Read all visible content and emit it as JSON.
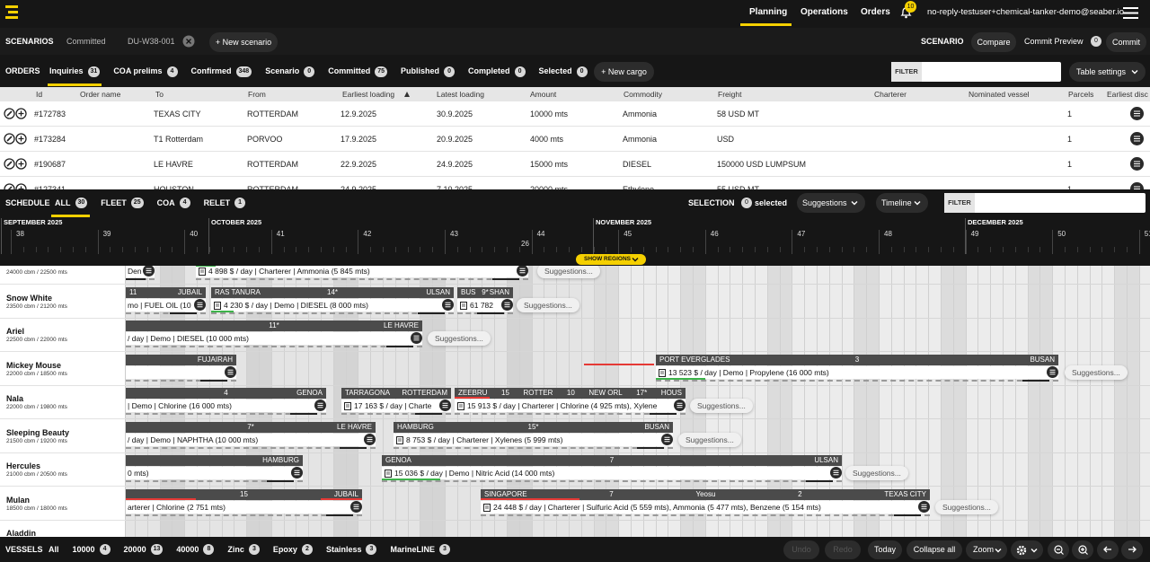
{
  "nav": {
    "links": [
      "Planning",
      "Operations",
      "Orders"
    ],
    "notifications": 10,
    "user": "no-reply-testuser+chemical-tanker-demo@seaber.io"
  },
  "scenarios": {
    "label": "SCENARIOS",
    "tabs": [
      "Committed",
      "DU-W38-001"
    ],
    "new": "+ New scenario",
    "right_label": "SCENARIO",
    "compare": "Compare",
    "preview": "Commit Preview",
    "preview_count": 0,
    "commit": "Commit"
  },
  "orders": {
    "label": "ORDERS",
    "tabs": [
      {
        "name": "Inquiries",
        "count": 31
      },
      {
        "name": "COA prelims",
        "count": 4
      },
      {
        "name": "Confirmed",
        "count": 348
      },
      {
        "name": "Scenario",
        "count": 0
      },
      {
        "name": "Committed",
        "count": 75
      },
      {
        "name": "Published",
        "count": 0
      },
      {
        "name": "Completed",
        "count": 0
      },
      {
        "name": "Selected",
        "count": 0
      },
      {
        "name": "All",
        "count": 458
      }
    ],
    "new": "+ New cargo",
    "filter": "FILTER",
    "settings": "Table settings"
  },
  "table": {
    "columns": [
      "Id",
      "Order name",
      "To",
      "From",
      "Earliest loading",
      "Latest loading",
      "Amount",
      "Commodity",
      "Freight",
      "Charterer",
      "Nominated vessel",
      "Parcels",
      "Earliest disc"
    ],
    "rows": [
      {
        "id": "#172783",
        "to": "TEXAS CITY",
        "from": "ROTTERDAM",
        "earliest": "12.9.2025",
        "latest": "30.9.2025",
        "amount": "10000 mts",
        "commodity": "Ammonia",
        "freight": "58 USD MT",
        "parcels": 1
      },
      {
        "id": "#173284",
        "to": "T1 Rotterdam",
        "from": "PORVOO",
        "earliest": "17.9.2025",
        "latest": "20.9.2025",
        "amount": "4000 mts",
        "commodity": "Ammonia",
        "freight": "USD",
        "parcels": 1
      },
      {
        "id": "#190687",
        "to": "LE HAVRE",
        "from": "ROTTERDAM",
        "earliest": "22.9.2025",
        "latest": "24.9.2025",
        "amount": "15000 mts",
        "commodity": "DIESEL",
        "freight": "150000 USD LUMPSUM",
        "parcels": 1
      },
      {
        "id": "#127341",
        "to": "HOUSTON",
        "from": "ROTTERDAM",
        "earliest": "24.9.2025",
        "latest": "7.10.2025",
        "amount": "20000 mts",
        "commodity": "Ethylene",
        "freight": "55 USD MT",
        "parcels": 1
      }
    ]
  },
  "schedule": {
    "label": "SCHEDULE",
    "tabs": [
      {
        "name": "ALL",
        "count": 30
      },
      {
        "name": "FLEET",
        "count": 25
      },
      {
        "name": "COA",
        "count": 4
      },
      {
        "name": "RELET",
        "count": 1
      }
    ],
    "selection": "SELECTION",
    "selected_count": 0,
    "selected": "selected",
    "suggestions": "Suggestions",
    "timeline": "Timeline",
    "filter": "FILTER"
  },
  "timeline": {
    "months": [
      "SEPTEMBER 2025",
      "OCTOBER 2025",
      "NOVEMBER 2025",
      "DECEMBER 2025"
    ],
    "weeks": [
      38,
      39,
      40,
      41,
      42,
      43,
      44,
      45,
      46,
      47,
      48,
      49,
      50,
      51
    ],
    "marker": 26,
    "show_regions": "SHOW REGIONS",
    "suggestions_label": "Suggestions..."
  },
  "vessels": [
    {
      "capacity": "24000 cbm / 22500 mts",
      "bars": [
        {
          "detail": "Den"
        },
        {
          "detail": "4 898 $ / day | Charterer | Ammonia (5 845 mts)"
        }
      ]
    },
    {
      "name": "Snow White",
      "capacity": "23500 cbm / 21200 mts",
      "bars": [
        {
          "left": "11",
          "right": "JUBAIL",
          "detail": "mo | FUEL OIL (10"
        },
        {
          "left": "RAS TANURA",
          "center": "14*",
          "right": "ULSAN",
          "detail": "4 230 $ / day | Demo | DIESEL (8 000 mts)"
        },
        {
          "left": "BUS",
          "center": "9*",
          "right": "SHAN",
          "detail": "61 782"
        }
      ]
    },
    {
      "name": "Ariel",
      "capacity": "22500 cbm / 22000 mts",
      "bars": [
        {
          "center": "11*",
          "right": "LE HAVRE",
          "detail": "/ day | Demo | DIESEL (10 000 mts)"
        }
      ]
    },
    {
      "name": "Mickey Mouse",
      "capacity": "22000 cbm / 18500 mts",
      "bars": [
        {
          "right": "FUJAIRAH"
        },
        {
          "left": "PORT EVERGLADES",
          "center": "3",
          "right": "BUSAN",
          "detail": "13 523 $ / day | Demo | Propylene (16 000 mts)"
        }
      ]
    },
    {
      "name": "Nala",
      "capacity": "22000 cbm / 19800 mts",
      "bars": [
        {
          "center": "4",
          "right": "GENOA",
          "detail": "| Demo | Chlorine (16 000 mts)"
        },
        {
          "left": "TARRAGONA",
          "right": "ROTTERDAM",
          "detail": "17 163 $ / day | Charte"
        },
        {
          "labels": [
            "ZEEBRU",
            "15",
            "ROTTER",
            "10",
            "NEW ORL",
            "17*",
            "HOUS"
          ],
          "detail": "15 913 $ / day | Charterer | Chlorine (4 925 mts), Xylene"
        }
      ]
    },
    {
      "name": "Sleeping Beauty",
      "capacity": "21500 cbm / 19200 mts",
      "bars": [
        {
          "center": "7*",
          "right": "LE HAVRE",
          "detail": "/ day | Demo | NAPHTHA (10 000 mts)"
        },
        {
          "left": "HAMBURG",
          "center": "15*",
          "right": "BUSAN",
          "detail": "8 753 $ / day | Charterer | Xylenes (5 999 mts)"
        }
      ]
    },
    {
      "name": "Hercules",
      "capacity": "21000 cbm / 20500 mts",
      "bars": [
        {
          "right": "HAMBURG",
          "detail": "0 mts)"
        },
        {
          "left": "GENOA",
          "center": "7",
          "right": "ULSAN",
          "detail": "15 036 $ / day | Demo | Nitric Acid (14 000 mts)"
        }
      ]
    },
    {
      "name": "Mulan",
      "capacity": "18500 cbm / 18000 mts",
      "bars": [
        {
          "center": "15",
          "right": "JUBAIL",
          "detail": "arterer | Chlorine (2 751 mts)"
        },
        {
          "labels": [
            "SINGAPORE",
            "7",
            "Yeosu",
            "2",
            "TEXAS CITY"
          ],
          "detail": "24 448 $ / day | Charterer | Sulfuric Acid (5 559 mts), Ammonia (5 477 mts), Benzene (5 154 mts)"
        }
      ]
    },
    {
      "name": "Aladdin"
    }
  ],
  "footer": {
    "label": "VESSELS",
    "filters": [
      {
        "name": "All"
      },
      {
        "name": "10000",
        "count": 4
      },
      {
        "name": "20000",
        "count": 13
      },
      {
        "name": "40000",
        "count": 8
      },
      {
        "name": "Zinc",
        "count": 3
      },
      {
        "name": "Epoxy",
        "count": 2
      },
      {
        "name": "Stainless",
        "count": 3
      },
      {
        "name": "MarineLINE",
        "count": 3
      }
    ],
    "undo": "Undo",
    "redo": "Redo",
    "today": "Today",
    "collapse": "Collapse all",
    "zoom": "Zoom"
  }
}
